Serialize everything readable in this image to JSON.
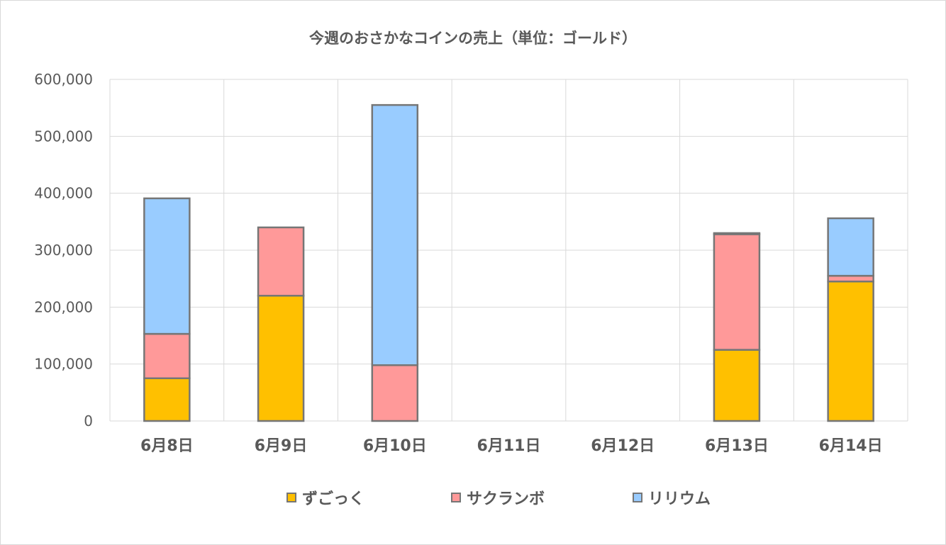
{
  "chart_data": {
    "type": "bar",
    "stacked": true,
    "title": "今週のおさかなコインの売上（単位：ゴールド）",
    "categories": [
      "6月8日",
      "6月9日",
      "6月10日",
      "6月11日",
      "6月12日",
      "6月13日",
      "6月14日"
    ],
    "ylim": [
      0,
      600000
    ],
    "yticks": [
      0,
      100000,
      200000,
      300000,
      400000,
      500000,
      600000
    ],
    "ytick_labels": [
      "0",
      "100,000",
      "200,000",
      "300,000",
      "400,000",
      "500,000",
      "600,000"
    ],
    "grid": true,
    "legend_position": "bottom",
    "series": [
      {
        "name": "ずごっく",
        "color": "#FFC000",
        "values": [
          75000,
          220000,
          0,
          0,
          0,
          125000,
          245000
        ]
      },
      {
        "name": "サクランボ",
        "color": "#FF9999",
        "values": [
          78000,
          120000,
          98000,
          0,
          0,
          203000,
          10000
        ]
      },
      {
        "name": "リリウム",
        "color": "#99CCFF",
        "values": [
          238000,
          0,
          457000,
          0,
          0,
          2000,
          101000
        ]
      }
    ]
  }
}
